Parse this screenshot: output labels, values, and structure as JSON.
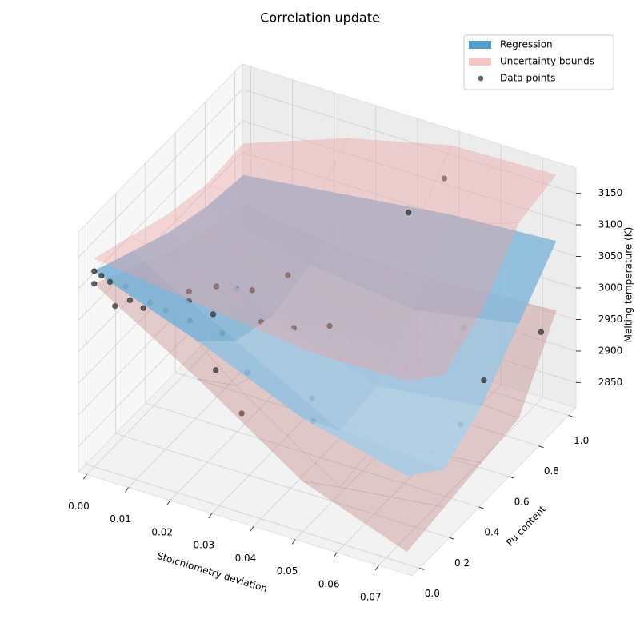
{
  "chart_data": {
    "type": "surface3d",
    "title": "Correlation update",
    "xlabel": "Stoichiometry deviation",
    "ylabel": "Pu content",
    "zlabel": "Melting temperature (K)",
    "xlim": [
      -0.002,
      0.078
    ],
    "ylim": [
      -0.05,
      1.05
    ],
    "zlim": [
      2810,
      3190
    ],
    "xticks": [
      {
        "value": 0,
        "label": "0.00"
      },
      0.01,
      0.02,
      0.03,
      0.04,
      0.05,
      0.06,
      0.07
    ],
    "yticks": [
      {
        "value": 0,
        "label": "0.0"
      },
      0.2,
      0.4,
      0.6,
      0.8,
      {
        "value": 1,
        "label": "1.0"
      }
    ],
    "zticks": [
      2850,
      2900,
      2950,
      3000,
      3050,
      3100,
      3150
    ],
    "grid": true,
    "legend": "upper right",
    "x_grid": [
      0,
      0.025,
      0.05,
      0.075
    ],
    "y_grid": [
      0,
      0.25,
      0.5,
      0.75,
      1
    ],
    "series": [
      {
        "name": "Regression",
        "color": "#4a98c9",
        "z": [
          [
            3120,
            3060,
            2990,
            2950
          ],
          [
            3090,
            3000,
            2910,
            2900
          ],
          [
            3060,
            2980,
            2920,
            2940
          ],
          [
            3040,
            3000,
            2980,
            3010
          ],
          [
            3030,
            3050,
            3070,
            3080
          ]
        ]
      },
      {
        "name": "Uncertainty bounds",
        "color": "#f4c6c6",
        "upper": [
          [
            3140,
            3120,
            3100,
            3100
          ],
          [
            3115,
            3070,
            3020,
            3050
          ],
          [
            3090,
            3050,
            3040,
            3090
          ],
          [
            3075,
            3080,
            3110,
            3170
          ],
          [
            3080,
            3140,
            3180,
            3185
          ]
        ],
        "lower": [
          [
            3100,
            3000,
            2890,
            2830
          ],
          [
            3065,
            2930,
            2820,
            2840
          ],
          [
            3030,
            2900,
            2830,
            2850
          ],
          [
            3005,
            2920,
            2870,
            2860
          ],
          [
            2985,
            2960,
            2960,
            2970
          ]
        ]
      },
      {
        "name": "Data points",
        "color": "#333333",
        "x": [
          0,
          0,
          0.001,
          0.002,
          0.004,
          0.005,
          0.008,
          0.01,
          0.012,
          0.012,
          0.014,
          0.015,
          0.016,
          0.018,
          0.02,
          0.02,
          0.022,
          0.024,
          0.025,
          0.026,
          0.03,
          0.03,
          0.035,
          0.038,
          0.04,
          0.045,
          0.05,
          0.06,
          0.07,
          0.072,
          0.075,
          0.005,
          0.01
        ],
        "y": [
          0,
          0,
          0.02,
          0.05,
          0.1,
          0,
          0.15,
          0.2,
          0.3,
          0.3,
          0.25,
          0.4,
          0.35,
          0.45,
          0.3,
          0.5,
          0.2,
          0.45,
          0.6,
          0.3,
          0.5,
          0.15,
          0.6,
          0.4,
          0.35,
          0.85,
          0.95,
          0.8,
          0.5,
          0.6,
          0.9,
          0.1,
          0.05
        ],
        "z": [
          3120,
          3100,
          3110,
          3095,
          3080,
          3075,
          3050,
          3030,
          3040,
          3025,
          3010,
          3030,
          3000,
          3020,
          2990,
          3010,
          2960,
          2980,
          3020,
          2940,
          2970,
          2920,
          2960,
          2900,
          2880,
          3100,
          3140,
          2960,
          2900,
          2950,
          2960,
          3060,
          3070
        ]
      }
    ]
  }
}
